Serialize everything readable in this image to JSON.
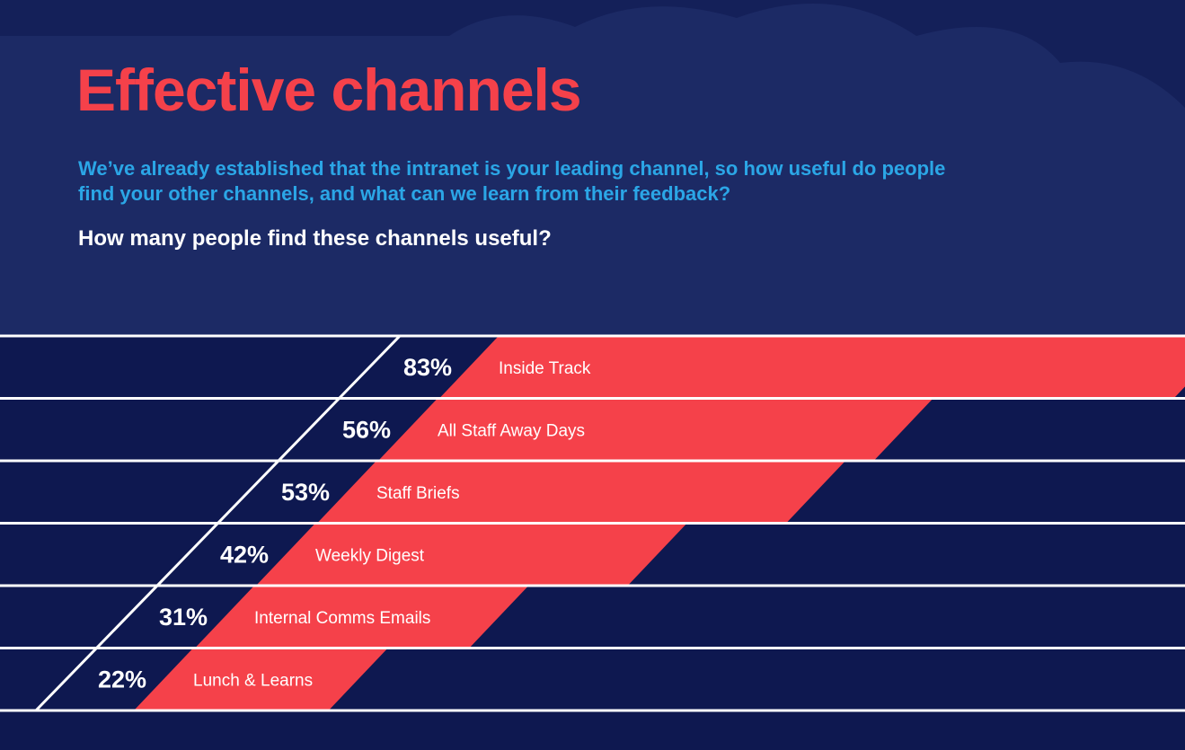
{
  "chart_data": {
    "type": "slanted-bar",
    "title": "Effective channels",
    "subtitle": "We’ve already established that the intranet is your leading channel, so how useful do people find your other channels, and what can we learn from their feedback?",
    "question": "How many people find these channels useful?",
    "categories": [
      "Inside Track",
      "All Staff Away Days",
      "Staff Briefs",
      "Weekly Digest",
      "Internal Comms Emails",
      "Lunch & Learns"
    ],
    "values": [
      83,
      56,
      53,
      42,
      31,
      22
    ],
    "value_labels": [
      "83%",
      "56%",
      "53%",
      "42%",
      "31%",
      "22%"
    ],
    "color": "#f5414a"
  }
}
